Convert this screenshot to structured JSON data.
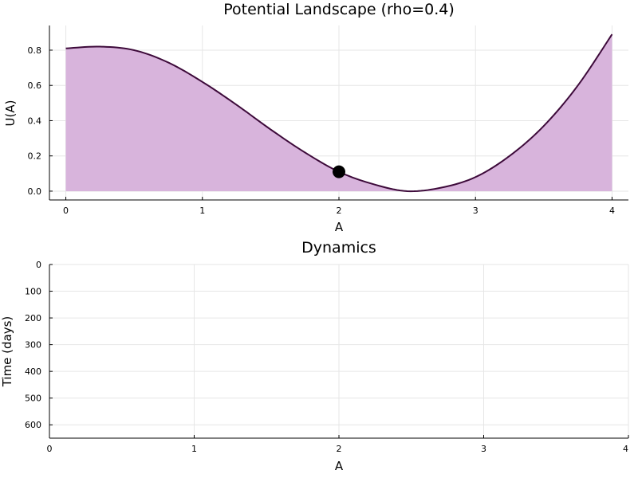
{
  "chart_data": [
    {
      "type": "area",
      "title": "Potential Landscape (rho=0.4)",
      "xlabel": "A",
      "ylabel": "U(A)",
      "xlim": [
        -0.12,
        4.12
      ],
      "ylim": [
        -0.05,
        0.94
      ],
      "xticks": [
        0,
        1,
        2,
        3,
        4
      ],
      "yticks": [
        0.0,
        0.2,
        0.4,
        0.6,
        0.8
      ],
      "xtick_labels": [
        "0",
        "1",
        "2",
        "3",
        "4"
      ],
      "ytick_labels": [
        "0.0",
        "0.2",
        "0.4",
        "0.6",
        "0.8"
      ],
      "grid": true,
      "legend": "none",
      "series": [
        {
          "x": [
            0,
            0.25,
            0.5,
            0.75,
            1.0,
            1.25,
            1.5,
            1.75,
            2.0,
            2.25,
            2.5,
            2.75,
            3.0,
            3.25,
            3.5,
            3.75,
            4.0
          ],
          "y": [
            0.81,
            0.82,
            0.8,
            0.73,
            0.62,
            0.49,
            0.35,
            0.22,
            0.11,
            0.04,
            0.0,
            0.02,
            0.08,
            0.2,
            0.37,
            0.6,
            0.89
          ],
          "line_color": "#3d0a3a",
          "fill_color": "#d8b4dc"
        }
      ],
      "marker": {
        "x": 2.0,
        "y": 0.11,
        "color": "#000000"
      }
    },
    {
      "type": "line",
      "title": "Dynamics",
      "xlabel": "A",
      "ylabel": "Time (days)",
      "xlim": [
        0,
        4
      ],
      "ylim": [
        0,
        650
      ],
      "y_inverted": true,
      "xticks": [
        0,
        1,
        2,
        3,
        4
      ],
      "yticks": [
        0,
        100,
        200,
        300,
        400,
        500,
        600
      ],
      "xtick_labels": [
        "0",
        "1",
        "2",
        "3",
        "4"
      ],
      "ytick_labels": [
        "0",
        "100",
        "200",
        "300",
        "400",
        "500",
        "600"
      ],
      "grid": true,
      "legend": "none",
      "series": []
    }
  ]
}
